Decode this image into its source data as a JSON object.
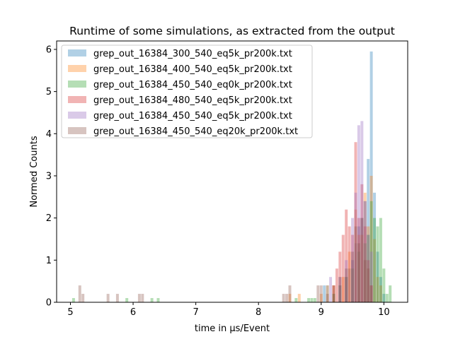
{
  "chart_data": {
    "type": "bar",
    "title": "Runtime of some simulations, as extracted from the output",
    "xlabel": "time in μs/Event",
    "ylabel": "Normed Counts",
    "xlim": [
      4.78,
      10.38
    ],
    "ylim": [
      0,
      6.2
    ],
    "xticks": [
      "5",
      "6",
      "7",
      "8",
      "9",
      "10"
    ],
    "yticks": [
      "0",
      "1",
      "2",
      "3",
      "4",
      "5",
      "6"
    ],
    "grid": false,
    "legend_position": "top-left",
    "bar_alpha": 0.35,
    "series": [
      {
        "name": "grep_out_16384_300_540_eq5k_pr200k.txt",
        "color": "#1f77b4",
        "bin_width": 0.045,
        "x": [
          9.05,
          9.1,
          9.2,
          9.3,
          9.4,
          9.45,
          9.5,
          9.55,
          9.6,
          9.65,
          9.7,
          9.75,
          9.8,
          9.85,
          9.9,
          9.95,
          10.0
        ],
        "y": [
          0.4,
          0.4,
          0.2,
          0.4,
          0.6,
          0.8,
          1.0,
          1.4,
          1.8,
          2.0,
          2.4,
          3.4,
          5.95,
          2.6,
          1.2,
          0.6,
          0.2
        ]
      },
      {
        "name": "grep_out_16384_400_540_eq5k_pr200k.txt",
        "color": "#ff7f0e",
        "bin_width": 0.045,
        "x": [
          8.5,
          8.65,
          9.0,
          9.1,
          9.2,
          9.35,
          9.45,
          9.55,
          9.6,
          9.65,
          9.7,
          9.75,
          9.8,
          9.85,
          9.9,
          9.95
        ],
        "y": [
          0.2,
          0.2,
          0.2,
          0.4,
          0.4,
          0.6,
          1.2,
          2.2,
          1.6,
          1.6,
          2.6,
          1.8,
          3.0,
          1.5,
          0.6,
          0.4
        ]
      },
      {
        "name": "grep_out_16384_450_540_eq0k_pr200k.txt",
        "color": "#2ca02c",
        "bin_width": 0.045,
        "x": [
          5.05,
          5.9,
          6.3,
          6.4,
          8.6,
          8.8,
          8.85,
          8.9,
          9.2,
          9.3,
          9.4,
          9.5,
          9.6,
          9.7,
          9.75,
          9.8,
          9.85,
          9.9,
          9.95,
          10.0,
          10.05,
          10.1
        ],
        "y": [
          0.1,
          0.1,
          0.1,
          0.1,
          0.1,
          0.1,
          0.1,
          0.1,
          0.2,
          0.4,
          0.6,
          0.8,
          1.2,
          1.4,
          1.6,
          2.4,
          2.0,
          1.8,
          2.0,
          0.8,
          0.2,
          0.4
        ]
      },
      {
        "name": "grep_out_16384_480_540_eq5k_pr200k.txt",
        "color": "#d62728",
        "bin_width": 0.045,
        "x": [
          9.2,
          9.25,
          9.3,
          9.35,
          9.4,
          9.45,
          9.5,
          9.55,
          9.6,
          9.65,
          9.7,
          9.75,
          9.8
        ],
        "y": [
          0.4,
          0.8,
          1.2,
          1.6,
          2.2,
          1.8,
          1.6,
          3.8,
          2.0,
          2.8,
          1.8,
          1.0,
          0.4
        ]
      },
      {
        "name": "grep_out_16384_450_540_eq5k_pr200k.txt",
        "color": "#9467bd",
        "bin_width": 0.045,
        "x": [
          9.15,
          9.3,
          9.4,
          9.5,
          9.55,
          9.6,
          9.65,
          9.7,
          9.75,
          9.8
        ],
        "y": [
          0.6,
          0.6,
          1.0,
          2.0,
          2.6,
          4.2,
          4.3,
          2.4,
          1.6,
          1.2
        ]
      },
      {
        "name": "grep_out_16384_450_540_eq20k_pr200k.txt",
        "color": "#8c564b",
        "bin_width": 0.045,
        "x": [
          5.15,
          5.2,
          5.6,
          5.75,
          6.1,
          6.15,
          8.4,
          8.45,
          8.5,
          8.95,
          9.0,
          9.1,
          9.2,
          9.3,
          9.4,
          9.5,
          9.55,
          9.6,
          9.65,
          9.7,
          9.75,
          9.8
        ],
        "y": [
          0.4,
          0.2,
          0.2,
          0.2,
          0.2,
          0.2,
          0.2,
          0.2,
          0.4,
          0.4,
          0.4,
          0.2,
          0.4,
          0.6,
          0.8,
          1.2,
          1.8,
          1.4,
          2.0,
          1.0,
          0.8,
          0.4
        ]
      }
    ]
  }
}
